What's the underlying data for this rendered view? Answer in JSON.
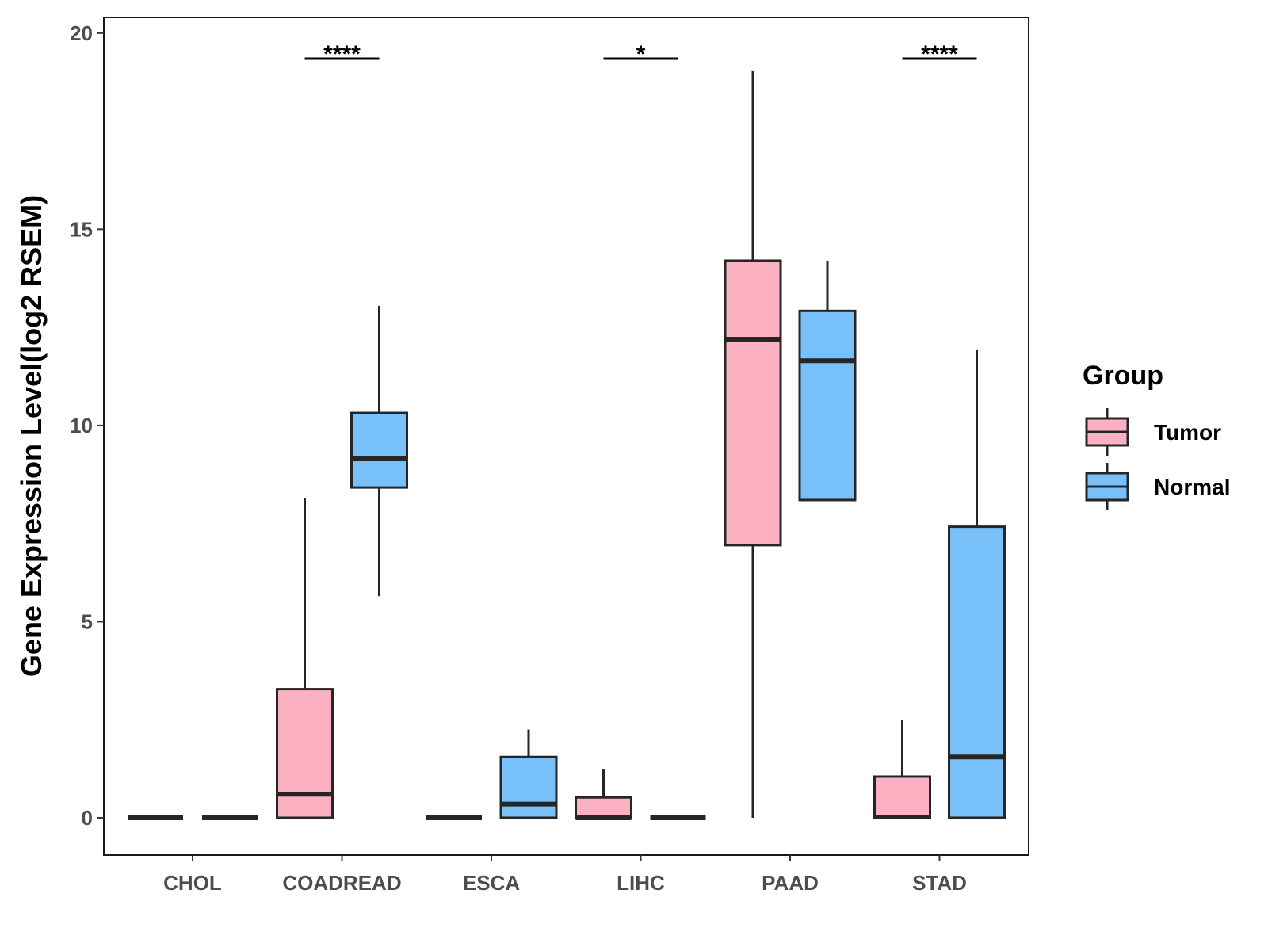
{
  "chart_data": {
    "type": "boxplot",
    "title": "",
    "xlabel": "",
    "ylabel": "Gene Expression Level(log2 RSEM)",
    "ylim": [
      -0.95,
      20.4
    ],
    "yticks": [
      0,
      5,
      10,
      15,
      20
    ],
    "categories": [
      "CHOL",
      "COADREAD",
      "ESCA",
      "LIHC",
      "PAAD",
      "STAD"
    ],
    "legend": {
      "title": "Group",
      "position": "right",
      "entries": [
        {
          "name": "Tumor",
          "color": "#FBB1C1"
        },
        {
          "name": "Normal",
          "color": "#77C0F9"
        }
      ]
    },
    "series": [
      {
        "name": "Tumor",
        "color": "#FBB1C1",
        "boxes": [
          {
            "category": "CHOL",
            "min": 0,
            "q1": 0,
            "median": 0,
            "q3": 0,
            "max": 0
          },
          {
            "category": "COADREAD",
            "min": 0,
            "q1": 0,
            "median": 0.6,
            "q3": 3.28,
            "max": 8.15
          },
          {
            "category": "ESCA",
            "min": 0,
            "q1": 0,
            "median": 0,
            "q3": 0,
            "max": 0
          },
          {
            "category": "LIHC",
            "min": 0,
            "q1": 0,
            "median": 0,
            "q3": 0.52,
            "max": 1.25
          },
          {
            "category": "PAAD",
            "min": 0,
            "q1": 6.95,
            "median": 12.2,
            "q3": 14.2,
            "max": 19.05
          },
          {
            "category": "STAD",
            "min": 0,
            "q1": 0,
            "median": 0.02,
            "q3": 1.05,
            "max": 2.5
          }
        ]
      },
      {
        "name": "Normal",
        "color": "#77C0F9",
        "boxes": [
          {
            "category": "CHOL",
            "min": 0,
            "q1": 0,
            "median": 0,
            "q3": 0,
            "max": 0
          },
          {
            "category": "COADREAD",
            "min": 5.65,
            "q1": 8.42,
            "median": 9.15,
            "q3": 10.32,
            "max": 13.05
          },
          {
            "category": "ESCA",
            "min": 0,
            "q1": 0,
            "median": 0.35,
            "q3": 1.55,
            "max": 2.25
          },
          {
            "category": "LIHC",
            "min": 0,
            "q1": 0,
            "median": 0,
            "q3": 0,
            "max": 0
          },
          {
            "category": "PAAD",
            "min": 8.1,
            "q1": 8.1,
            "median": 11.65,
            "q3": 12.92,
            "max": 14.2
          },
          {
            "category": "STAD",
            "min": 0,
            "q1": 0,
            "median": 1.55,
            "q3": 7.42,
            "max": 11.92
          }
        ]
      }
    ],
    "annotations": [
      {
        "category": "COADREAD",
        "label": "****",
        "y": 19.35
      },
      {
        "category": "LIHC",
        "label": "*",
        "y": 19.35
      },
      {
        "category": "STAD",
        "label": "****",
        "y": 19.35
      }
    ]
  }
}
